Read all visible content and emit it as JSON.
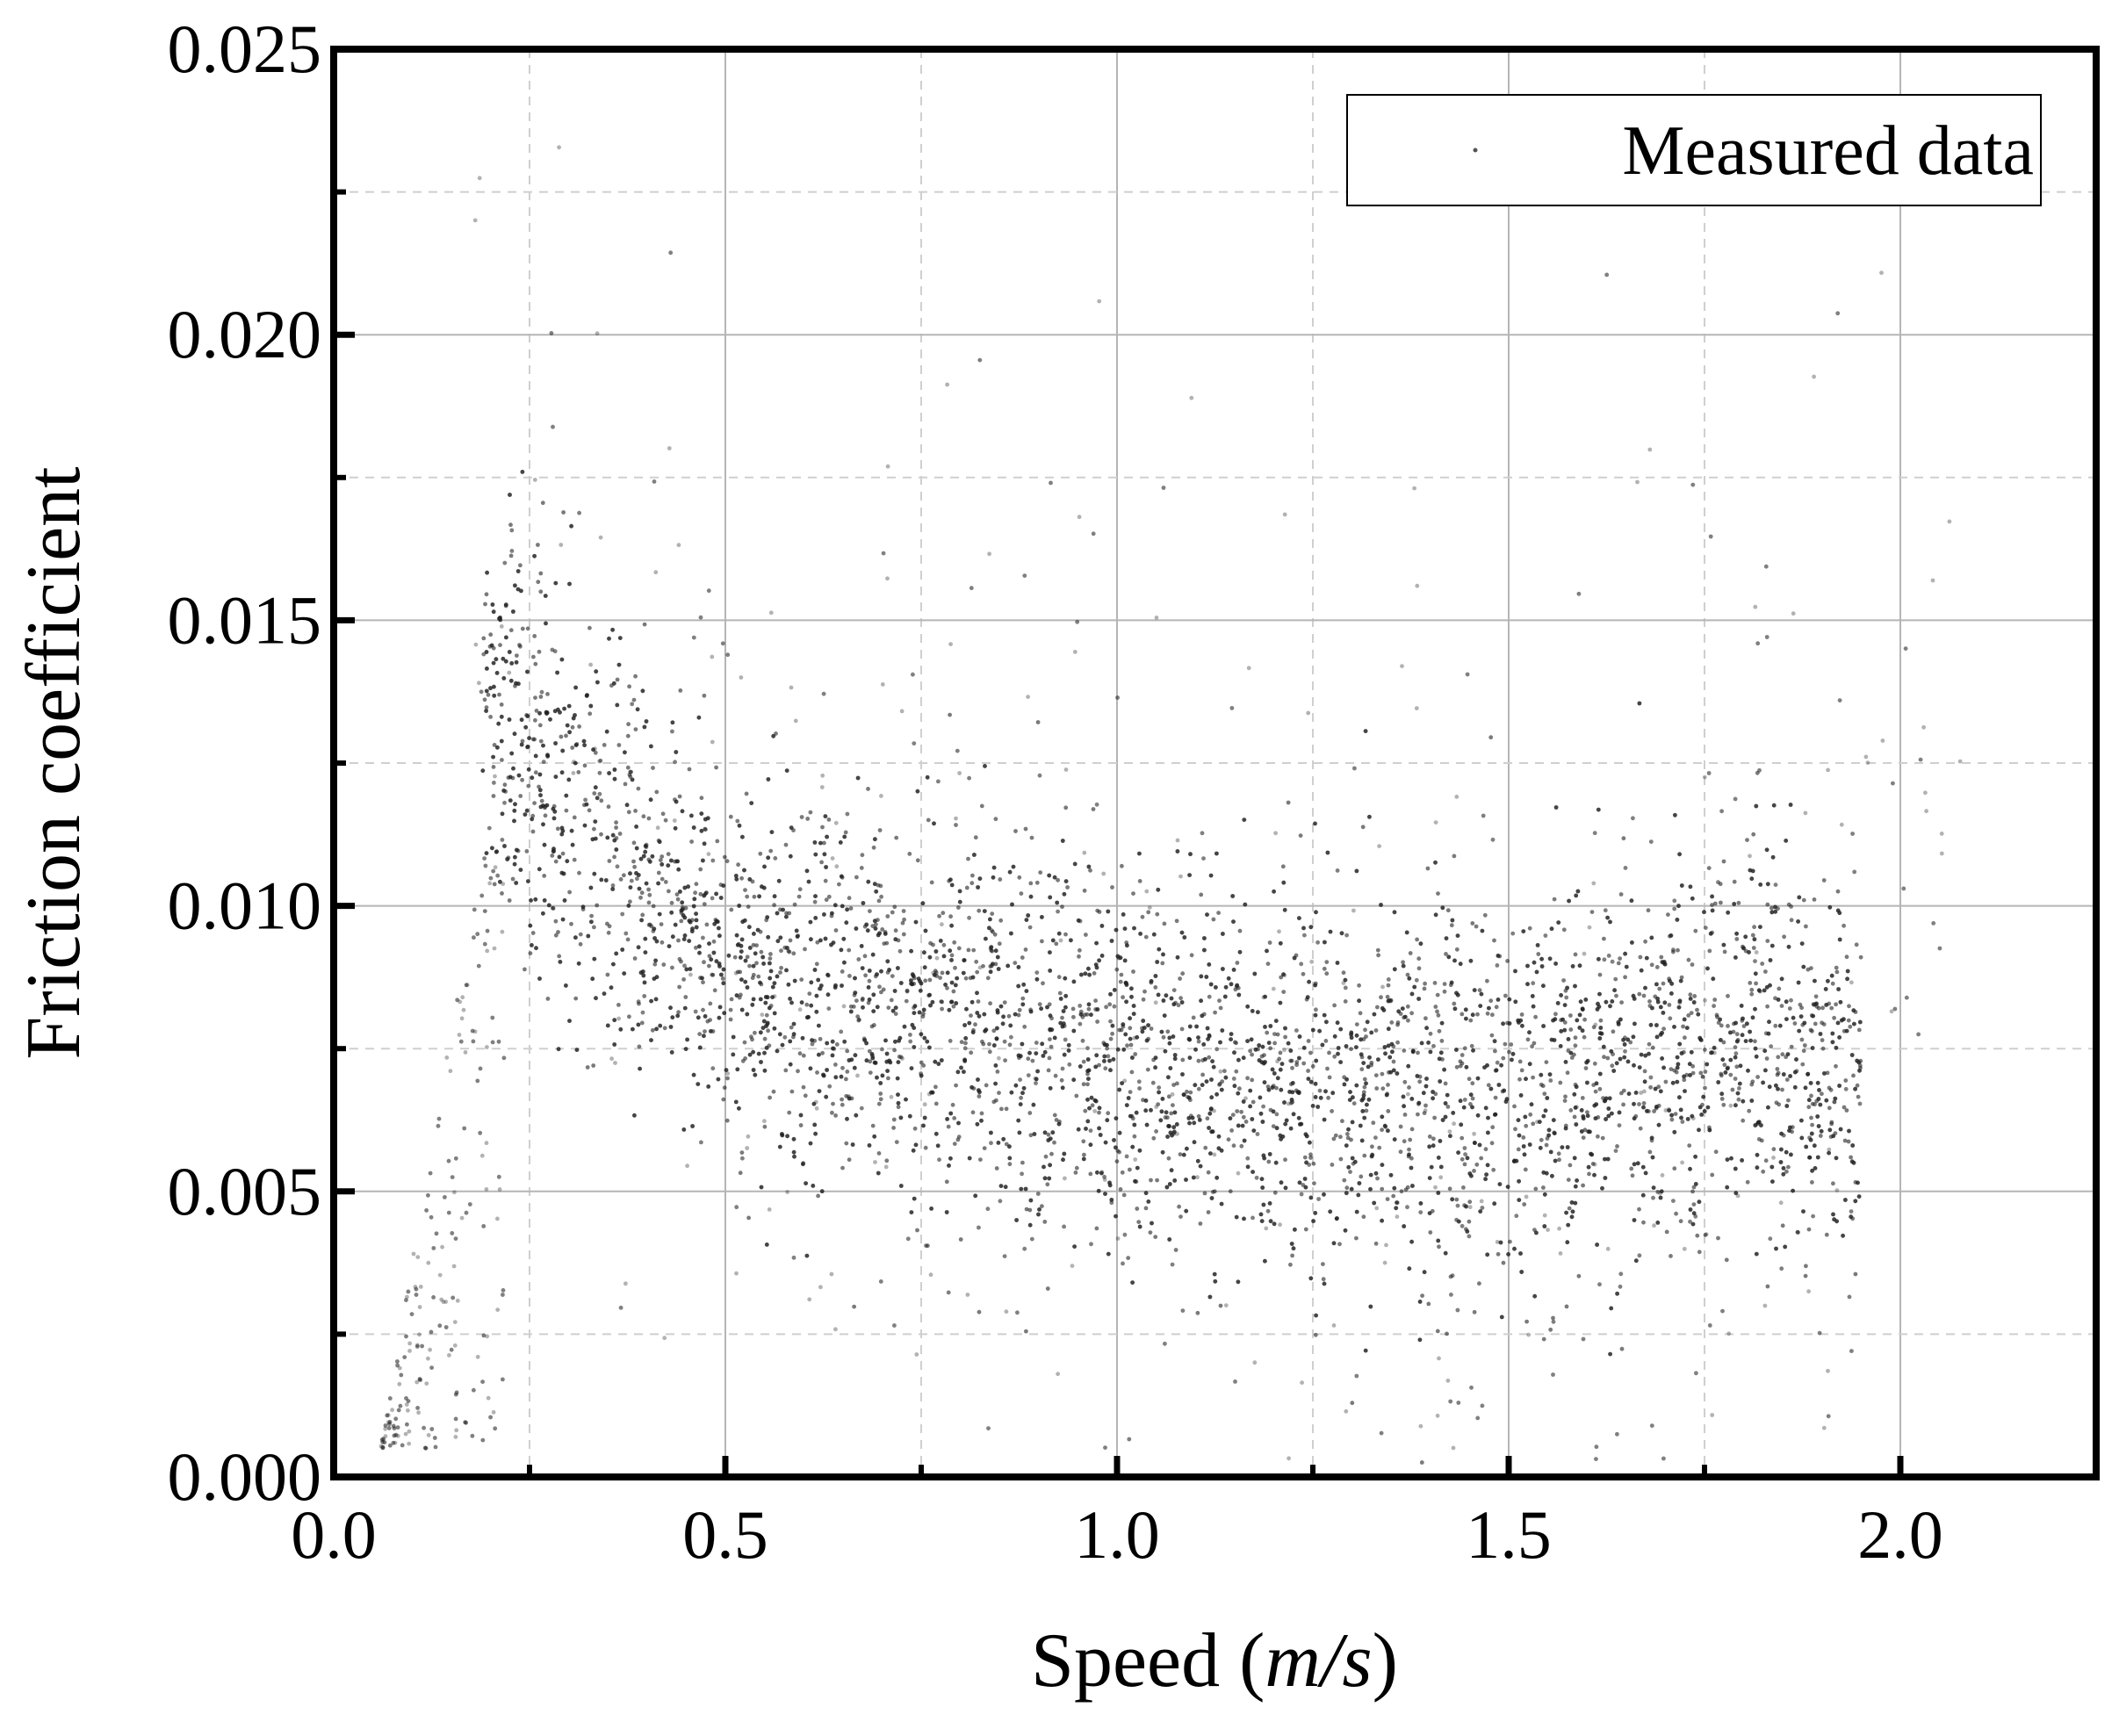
{
  "chart_data": {
    "type": "scatter",
    "title": "",
    "xlabel": "Speed (m/s)",
    "xlabel_parts": {
      "prefix": "Speed (",
      "italic": "m/s",
      "suffix": ")"
    },
    "ylabel": "Friction coefficient",
    "xlim": [
      0.0,
      2.25
    ],
    "ylim": [
      0.0,
      0.025
    ],
    "xticks": [
      0.0,
      0.5,
      1.0,
      1.5,
      2.0
    ],
    "xtick_labels": [
      "0.0",
      "0.5",
      "1.0",
      "1.5",
      "2.0"
    ],
    "yticks": [
      0.0,
      0.005,
      0.01,
      0.015,
      0.02,
      0.025
    ],
    "ytick_labels": [
      "0.000",
      "0.005",
      "0.010",
      "0.015",
      "0.020",
      "0.025"
    ],
    "grid": true,
    "legend": {
      "position": "top-right",
      "entries": [
        "Measured data"
      ]
    },
    "series": [
      {
        "name": "Measured data",
        "color": "#222222",
        "trend": {
          "x": [
            0.2,
            0.25,
            0.3,
            0.4,
            0.5,
            0.6,
            0.7,
            0.8,
            0.9,
            1.0,
            1.1,
            1.2,
            1.3,
            1.4,
            1.5,
            1.6,
            1.7,
            1.8,
            1.9
          ],
          "y": [
            0.0135,
            0.0128,
            0.0118,
            0.0103,
            0.0091,
            0.0085,
            0.0082,
            0.0079,
            0.0077,
            0.0074,
            0.0071,
            0.0068,
            0.0068,
            0.0069,
            0.0066,
            0.0071,
            0.0073,
            0.0077,
            0.007
          ]
        },
        "spread": 0.0022,
        "x_range": [
          0.06,
          2.12
        ]
      }
    ]
  }
}
